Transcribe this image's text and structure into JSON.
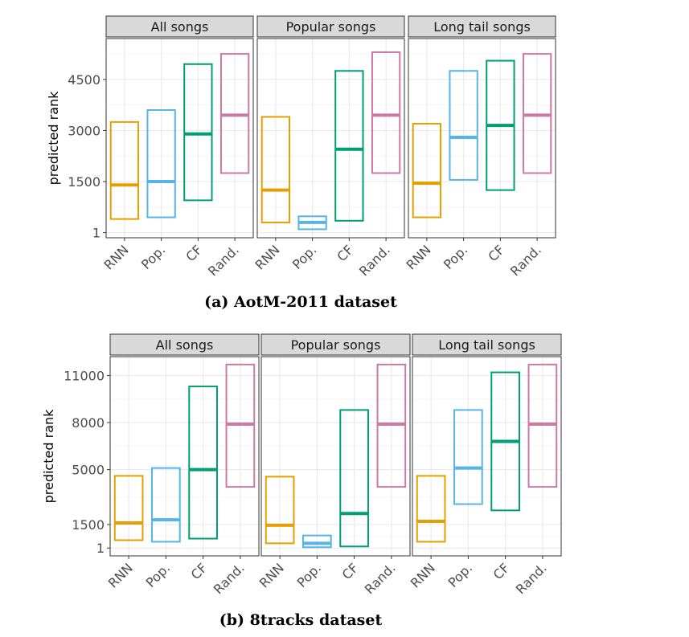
{
  "chart_data": [
    {
      "type": "boxplot",
      "caption": "(a) AotM-2011 dataset",
      "ylabel": "predicted rank",
      "yticks": [
        1,
        1500,
        3000,
        4500
      ],
      "ylim": [
        -150,
        5700
      ],
      "categories": [
        "RNN",
        "Pop.",
        "CF",
        "Rand."
      ],
      "panels": [
        {
          "name": "All songs",
          "boxes": [
            {
              "low": 400,
              "median": 1400,
              "high": 3250
            },
            {
              "low": 450,
              "median": 1500,
              "high": 3600
            },
            {
              "low": 950,
              "median": 2900,
              "high": 4950
            },
            {
              "low": 1750,
              "median": 3450,
              "high": 5250
            }
          ]
        },
        {
          "name": "Popular songs",
          "boxes": [
            {
              "low": 300,
              "median": 1250,
              "high": 3400
            },
            {
              "low": 100,
              "median": 300,
              "high": 480
            },
            {
              "low": 350,
              "median": 2450,
              "high": 4750
            },
            {
              "low": 1750,
              "median": 3450,
              "high": 5300
            }
          ]
        },
        {
          "name": "Long tail songs",
          "boxes": [
            {
              "low": 450,
              "median": 1450,
              "high": 3200
            },
            {
              "low": 1550,
              "median": 2800,
              "high": 4750
            },
            {
              "low": 1250,
              "median": 3150,
              "high": 5050
            },
            {
              "low": 1750,
              "median": 3450,
              "high": 5250
            }
          ]
        }
      ]
    },
    {
      "type": "boxplot",
      "caption": "(b) 8tracks dataset",
      "ylabel": "predicted rank",
      "yticks": [
        1,
        1500,
        5000,
        8000,
        11000
      ],
      "ylim": [
        -500,
        12200
      ],
      "categories": [
        "RNN",
        "Pop.",
        "CF",
        "Rand."
      ],
      "panels": [
        {
          "name": "All songs",
          "boxes": [
            {
              "low": 500,
              "median": 1600,
              "high": 4600
            },
            {
              "low": 400,
              "median": 1800,
              "high": 5100
            },
            {
              "low": 600,
              "median": 5000,
              "high": 10300
            },
            {
              "low": 3900,
              "median": 7900,
              "high": 11700
            }
          ]
        },
        {
          "name": "Popular songs",
          "boxes": [
            {
              "low": 300,
              "median": 1450,
              "high": 4550
            },
            {
              "low": 50,
              "median": 300,
              "high": 800
            },
            {
              "low": 100,
              "median": 2200,
              "high": 8800
            },
            {
              "low": 3900,
              "median": 7900,
              "high": 11700
            }
          ]
        },
        {
          "name": "Long tail songs",
          "boxes": [
            {
              "low": 400,
              "median": 1700,
              "high": 4600
            },
            {
              "low": 2800,
              "median": 5100,
              "high": 8800
            },
            {
              "low": 2400,
              "median": 6800,
              "high": 11200
            },
            {
              "low": 3900,
              "median": 7900,
              "high": 11700
            }
          ]
        }
      ]
    }
  ],
  "colors": {
    "RNN": "#E69F00",
    "Pop.": "#56B4E9",
    "CF": "#009E73",
    "Rand.": "#CC79A7",
    "strip_fill": "#D9D9D9",
    "grid_major": "#EBEBEB",
    "grid_minor": "#F5F5F5"
  }
}
